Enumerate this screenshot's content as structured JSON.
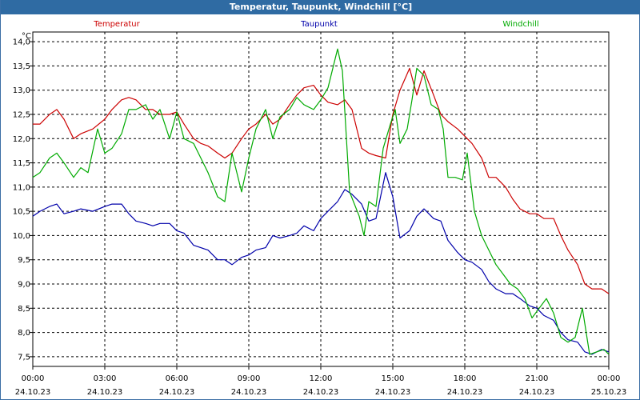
{
  "window": {
    "title": "Temperatur, Taupunkt, Windchill [°C]"
  },
  "chart_data": {
    "type": "line",
    "title": "Temperatur, Taupunkt, Windchill [°C]",
    "ylabel": "°C",
    "ylim": [
      7.3,
      14.2
    ],
    "xlim": [
      0,
      24
    ],
    "grid": true,
    "legend": "top",
    "y_ticks": [
      "14,0",
      "13,5",
      "13,0",
      "12,5",
      "12,0",
      "11,5",
      "11,0",
      "10,5",
      "10,0",
      "9,5",
      "9,0",
      "8,5",
      "8,0",
      "7,5"
    ],
    "y_tick_values": [
      14.0,
      13.5,
      13.0,
      12.5,
      12.0,
      11.5,
      11.0,
      10.5,
      10.0,
      9.5,
      9.0,
      8.5,
      8.0,
      7.5
    ],
    "x_ticks": [
      {
        "x": 0,
        "time": "00:00",
        "date": "24.10.23"
      },
      {
        "x": 3,
        "time": "03:00",
        "date": "24.10.23"
      },
      {
        "x": 6,
        "time": "06:00",
        "date": "24.10.23"
      },
      {
        "x": 9,
        "time": "09:00",
        "date": "24.10.23"
      },
      {
        "x": 12,
        "time": "12:00",
        "date": "24.10.23"
      },
      {
        "x": 15,
        "time": "15:00",
        "date": "24.10.23"
      },
      {
        "x": 18,
        "time": "18:00",
        "date": "24.10.23"
      },
      {
        "x": 21,
        "time": "21:00",
        "date": "24.10.23"
      },
      {
        "x": 24,
        "time": "00:00",
        "date": "25.10.23"
      }
    ],
    "series": [
      {
        "name": "Temperatur",
        "color": "#cc0000",
        "x": [
          0,
          0.3,
          0.7,
          1.0,
          1.3,
          1.7,
          2.0,
          2.5,
          3.0,
          3.3,
          3.7,
          4.0,
          4.3,
          4.7,
          5.0,
          5.3,
          5.7,
          6.0,
          6.3,
          6.7,
          7.0,
          7.3,
          7.7,
          8.0,
          8.3,
          8.7,
          9.0,
          9.3,
          9.7,
          10.0,
          10.3,
          10.7,
          11.0,
          11.3,
          11.7,
          12.0,
          12.3,
          12.7,
          13.0,
          13.3,
          13.7,
          14.0,
          14.3,
          14.7,
          15.0,
          15.3,
          15.7,
          16.0,
          16.3,
          16.7,
          17.0,
          17.3,
          17.7,
          18.0,
          18.3,
          18.7,
          19.0,
          19.3,
          19.7,
          20.0,
          20.3,
          20.7,
          21.0,
          21.3,
          21.7,
          22.0,
          22.3,
          22.7,
          23.0,
          23.3,
          23.7,
          24.0
        ],
        "y": [
          12.3,
          12.3,
          12.5,
          12.6,
          12.4,
          12.0,
          12.1,
          12.2,
          12.4,
          12.6,
          12.8,
          12.85,
          12.8,
          12.6,
          12.6,
          12.5,
          12.5,
          12.55,
          12.3,
          12.0,
          11.9,
          11.85,
          11.7,
          11.6,
          11.7,
          12.0,
          12.2,
          12.3,
          12.5,
          12.3,
          12.4,
          12.7,
          12.9,
          13.05,
          13.1,
          12.9,
          12.75,
          12.7,
          12.8,
          12.6,
          11.8,
          11.7,
          11.65,
          11.6,
          12.5,
          13.0,
          13.45,
          12.9,
          13.4,
          12.9,
          12.5,
          12.35,
          12.2,
          12.05,
          11.9,
          11.6,
          11.2,
          11.2,
          11.0,
          10.75,
          10.55,
          10.45,
          10.45,
          10.35,
          10.35,
          10.0,
          9.7,
          9.4,
          9.0,
          8.9,
          8.9,
          8.8
        ]
      },
      {
        "name": "Taupunkt",
        "color": "#0000aa",
        "x": [
          0,
          0.3,
          0.7,
          1.0,
          1.3,
          1.7,
          2.0,
          2.5,
          3.0,
          3.3,
          3.7,
          4.0,
          4.3,
          4.7,
          5.0,
          5.3,
          5.7,
          6.0,
          6.3,
          6.7,
          7.0,
          7.3,
          7.7,
          8.0,
          8.3,
          8.7,
          9.0,
          9.3,
          9.7,
          10.0,
          10.3,
          10.7,
          11.0,
          11.3,
          11.7,
          12.0,
          12.3,
          12.7,
          13.0,
          13.3,
          13.7,
          14.0,
          14.3,
          14.7,
          15.0,
          15.3,
          15.7,
          16.0,
          16.3,
          16.7,
          17.0,
          17.3,
          17.7,
          18.0,
          18.3,
          18.7,
          19.0,
          19.3,
          19.7,
          20.0,
          20.3,
          20.7,
          21.0,
          21.3,
          21.7,
          22.0,
          22.3,
          22.7,
          23.0,
          23.3,
          23.7,
          24.0
        ],
        "y": [
          10.4,
          10.5,
          10.6,
          10.65,
          10.45,
          10.5,
          10.55,
          10.5,
          10.6,
          10.65,
          10.65,
          10.45,
          10.3,
          10.25,
          10.2,
          10.25,
          10.25,
          10.1,
          10.05,
          9.8,
          9.75,
          9.7,
          9.5,
          9.5,
          9.4,
          9.55,
          9.6,
          9.7,
          9.75,
          10.0,
          9.95,
          10.0,
          10.05,
          10.2,
          10.1,
          10.35,
          10.5,
          10.7,
          10.95,
          10.85,
          10.65,
          10.3,
          10.35,
          11.3,
          10.8,
          9.95,
          10.1,
          10.4,
          10.55,
          10.35,
          10.3,
          9.9,
          9.65,
          9.5,
          9.45,
          9.3,
          9.05,
          8.9,
          8.8,
          8.8,
          8.7,
          8.55,
          8.5,
          8.35,
          8.25,
          8.0,
          7.85,
          7.8,
          7.6,
          7.55,
          7.65,
          7.6
        ]
      },
      {
        "name": "Windchill",
        "color": "#00aa00",
        "x": [
          0,
          0.3,
          0.7,
          1.0,
          1.3,
          1.7,
          2.0,
          2.3,
          2.7,
          3.0,
          3.3,
          3.7,
          4.0,
          4.3,
          4.7,
          5.0,
          5.3,
          5.7,
          6.0,
          6.3,
          6.7,
          7.0,
          7.3,
          7.7,
          8.0,
          8.3,
          8.7,
          9.0,
          9.3,
          9.7,
          10.0,
          10.3,
          10.7,
          11.0,
          11.3,
          11.7,
          12.0,
          12.3,
          12.7,
          12.9,
          13.2,
          13.6,
          13.8,
          14.0,
          14.3,
          14.6,
          14.9,
          15.1,
          15.3,
          15.6,
          15.8,
          16.0,
          16.3,
          16.6,
          16.9,
          17.1,
          17.3,
          17.6,
          17.9,
          18.1,
          18.4,
          18.7,
          19.0,
          19.3,
          19.6,
          19.9,
          20.2,
          20.5,
          20.8,
          21.1,
          21.4,
          21.7,
          22.0,
          22.3,
          22.6,
          22.9,
          23.2,
          23.5,
          23.8,
          24.0
        ],
        "y": [
          11.2,
          11.3,
          11.6,
          11.7,
          11.5,
          11.2,
          11.4,
          11.3,
          12.2,
          11.7,
          11.8,
          12.1,
          12.6,
          12.6,
          12.7,
          12.4,
          12.6,
          12.0,
          12.55,
          12.0,
          11.9,
          11.6,
          11.3,
          10.8,
          10.7,
          11.7,
          10.9,
          11.6,
          12.2,
          12.6,
          12.0,
          12.45,
          12.6,
          12.85,
          12.7,
          12.6,
          12.8,
          13.05,
          13.85,
          13.4,
          10.9,
          10.4,
          10.0,
          10.7,
          10.6,
          11.8,
          12.3,
          12.6,
          11.9,
          12.2,
          12.8,
          13.45,
          13.3,
          12.7,
          12.6,
          12.2,
          11.2,
          11.2,
          11.15,
          11.7,
          10.5,
          10.0,
          9.7,
          9.4,
          9.2,
          9.0,
          8.9,
          8.7,
          8.3,
          8.5,
          8.7,
          8.4,
          7.9,
          7.8,
          7.9,
          8.5,
          7.55,
          7.6,
          7.65,
          7.55
        ]
      }
    ]
  }
}
